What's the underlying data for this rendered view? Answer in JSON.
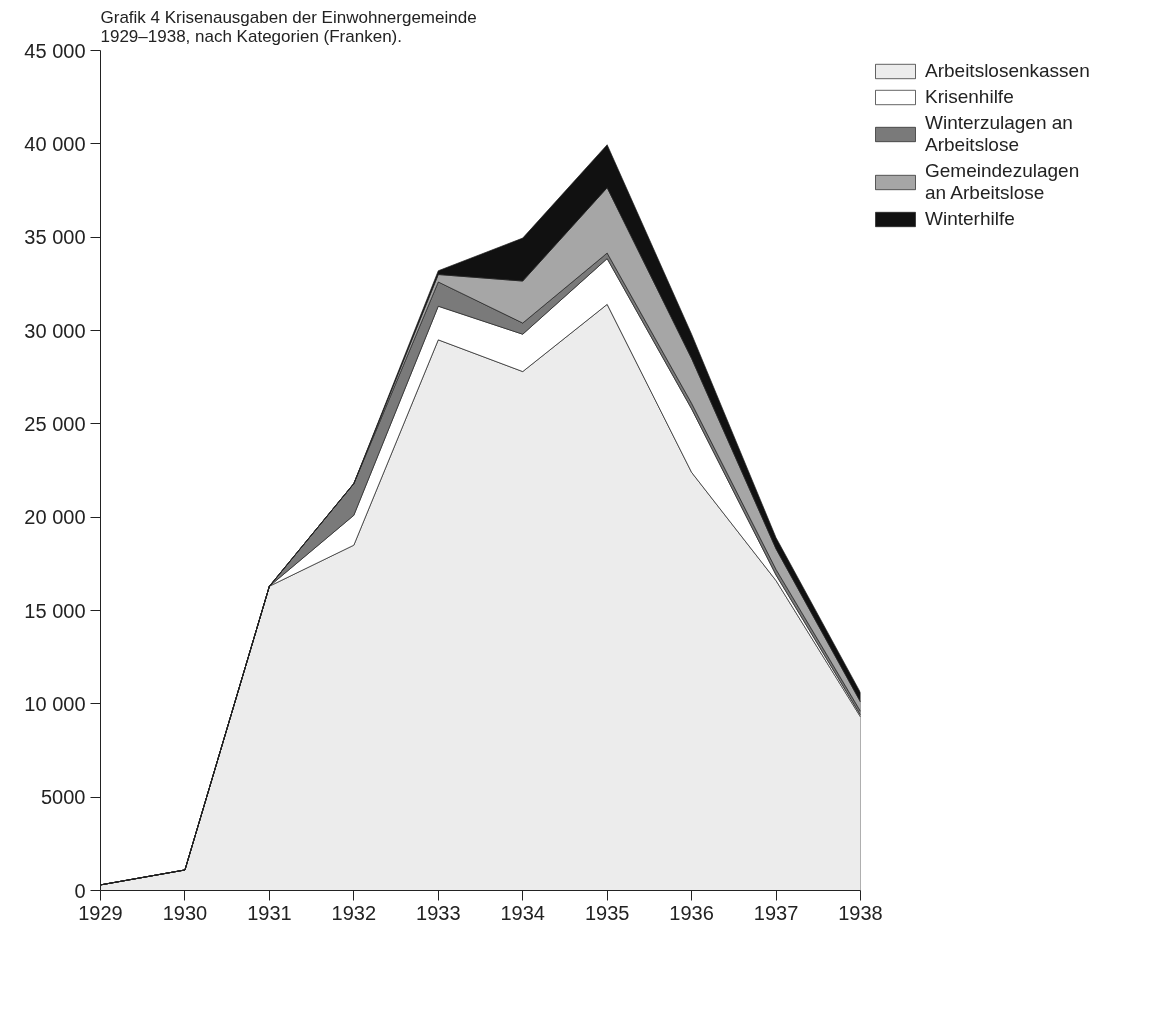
{
  "chart_data": {
    "type": "area",
    "stacked": true,
    "title": "Grafik 4  Krisenausgaben der Einwohnergemeinde 1929–1938, nach Kategorien (Franken).",
    "x": [
      1929,
      1930,
      1931,
      1932,
      1933,
      1934,
      1935,
      1936,
      1937,
      1938
    ],
    "series": [
      {
        "name": "Arbeitslosenkassen",
        "color": "#ececec",
        "values": [
          300,
          1100,
          16300,
          18500,
          29500,
          27800,
          31400,
          22400,
          16600,
          9300
        ]
      },
      {
        "name": "Krisenhilfe",
        "color": "#ffffff",
        "values": [
          0,
          0,
          0,
          1600,
          1800,
          2000,
          2450,
          3400,
          300,
          100
        ]
      },
      {
        "name": "Winterzulagen an Arbeitslose",
        "color": "#7a7a7a",
        "values": [
          0,
          0,
          0,
          1700,
          1300,
          600,
          300,
          300,
          300,
          200
        ]
      },
      {
        "name": "Gemeindezulagen an Arbeitslose",
        "color": "#a6a6a6",
        "values": [
          0,
          0,
          0,
          0,
          400,
          2250,
          3500,
          2400,
          1100,
          500
        ]
      },
      {
        "name": "Winterhilfe",
        "color": "#111111",
        "values": [
          0,
          0,
          0,
          0,
          200,
          2300,
          2300,
          1300,
          600,
          500
        ]
      }
    ],
    "xlim": [
      1929,
      1938
    ],
    "ylim": [
      0,
      45000
    ],
    "xticks": [
      1929,
      1930,
      1931,
      1932,
      1933,
      1934,
      1935,
      1936,
      1937,
      1938
    ],
    "yticks": [
      0,
      5000,
      {
        "value": 10000,
        "label": "10 000"
      },
      {
        "value": 15000,
        "label": "15 000"
      },
      {
        "value": 20000,
        "label": "20 000"
      },
      {
        "value": 25000,
        "label": "25 000"
      },
      {
        "value": 30000,
        "label": "30 000"
      },
      {
        "value": 35000,
        "label": "35 000"
      },
      {
        "value": 40000,
        "label": "40 000"
      },
      {
        "value": 45000,
        "label": "45 000"
      }
    ],
    "grid": false,
    "legend": "top right"
  }
}
